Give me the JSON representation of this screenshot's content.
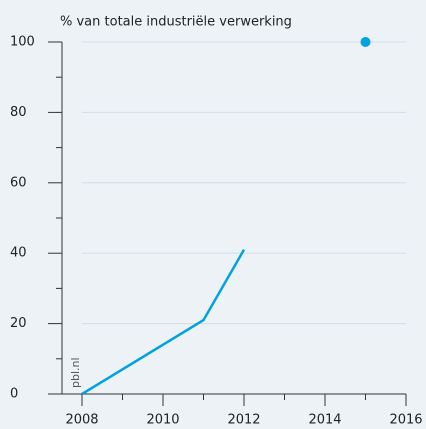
{
  "chart_data": {
    "type": "line",
    "title": "% van totale industriële verwerking",
    "source": "pbl.nl",
    "x": [
      2008,
      2011,
      2012,
      2015
    ],
    "series": [
      {
        "color": "#00a3e0",
        "values": [
          0,
          21,
          41,
          null
        ],
        "style": "line"
      },
      {
        "color": "#00a3e0",
        "values": [
          null,
          null,
          null,
          100
        ],
        "style": "point"
      }
    ],
    "xlim": [
      2008,
      2016
    ],
    "xticks": [
      2008,
      2010,
      2012,
      2014,
      2016
    ],
    "xminorticks": [
      2009,
      2011,
      2013,
      2015
    ],
    "ylim": [
      0,
      100
    ],
    "yticks": [
      0,
      20,
      40,
      60,
      80,
      100
    ],
    "yminorticks": [
      10,
      30,
      50,
      70,
      90
    ],
    "grid": true
  }
}
